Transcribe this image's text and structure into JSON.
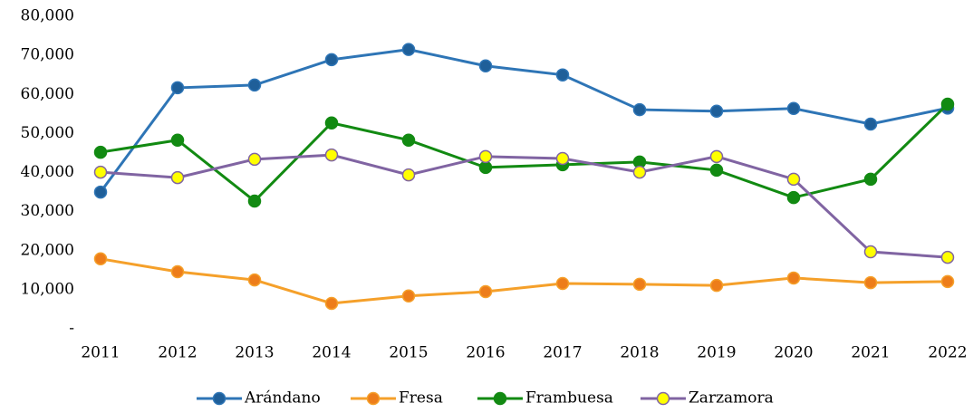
{
  "chart_data": {
    "type": "line",
    "categories": [
      "2011",
      "2012",
      "2013",
      "2014",
      "2015",
      "2016",
      "2017",
      "2018",
      "2019",
      "2020",
      "2021",
      "2022"
    ],
    "series": [
      {
        "name": "Arándano",
        "color": "#2e75b6",
        "marker_color": "#1f5f99",
        "values": [
          35000,
          61700,
          62400,
          68900,
          71500,
          67300,
          65000,
          56100,
          55700,
          56400,
          52400,
          56500
        ]
      },
      {
        "name": "Fresa",
        "color": "#f5a02a",
        "marker_color": "#ed7d1a",
        "values": [
          17900,
          14600,
          12500,
          6500,
          8400,
          9500,
          11600,
          11400,
          11100,
          13000,
          11800,
          12100
        ]
      },
      {
        "name": "Frambuesa",
        "color": "#128a12",
        "marker_color": "#128a12",
        "values": [
          45200,
          48300,
          32700,
          52700,
          48300,
          41300,
          42000,
          42700,
          40600,
          33600,
          38300,
          57500
        ]
      },
      {
        "name": "Zarzamora",
        "color": "#8064a2",
        "marker_color": "#ffff00",
        "values": [
          40100,
          38700,
          43400,
          44500,
          39400,
          44100,
          43600,
          40100,
          44100,
          38300,
          19700,
          18300
        ]
      }
    ],
    "ylim": [
      0,
      80000
    ],
    "yticks": [
      {
        "value": 0,
        "label": "-"
      },
      {
        "value": 10000,
        "label": "10,000"
      },
      {
        "value": 20000,
        "label": "20,000"
      },
      {
        "value": 30000,
        "label": "30,000"
      },
      {
        "value": 40000,
        "label": "40,000"
      },
      {
        "value": 50000,
        "label": "50,000"
      },
      {
        "value": 60000,
        "label": "60,000"
      },
      {
        "value": 70000,
        "label": "70,000"
      },
      {
        "value": 80000,
        "label": "80,000"
      }
    ],
    "grid": false,
    "legend": "bottom"
  }
}
